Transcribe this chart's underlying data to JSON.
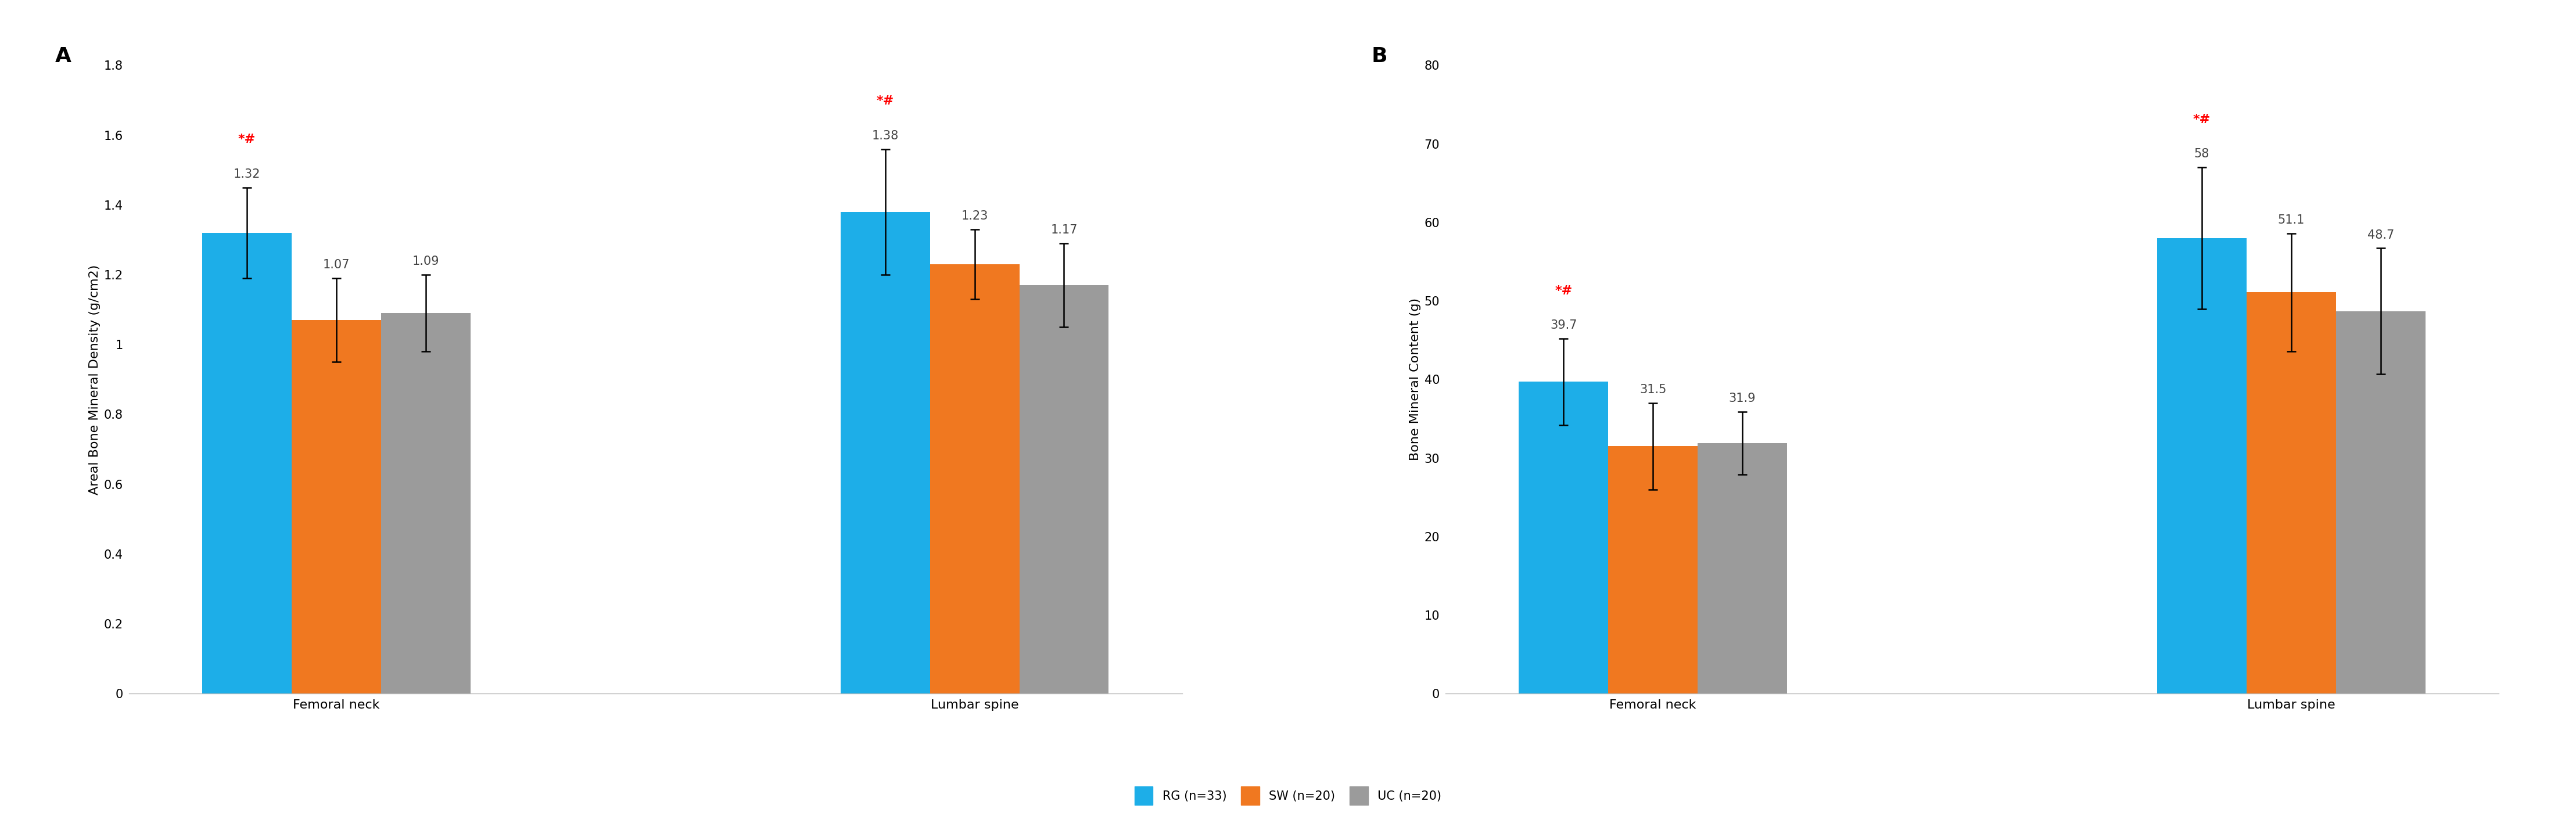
{
  "panel_A": {
    "title": "A",
    "ylabel": "Areal Bone Mineral Density (g/cm2)",
    "ylim": [
      0,
      1.8
    ],
    "yticks": [
      0,
      0.2,
      0.4,
      0.6,
      0.8,
      1.0,
      1.2,
      1.4,
      1.6,
      1.8
    ],
    "ytick_labels": [
      "0",
      "0.2",
      "0.4",
      "0.6",
      "0.8",
      "1",
      "1.2",
      "1.4",
      "1.6",
      "1.8"
    ],
    "groups": [
      "Femoral neck",
      "Lumbar spine"
    ],
    "values": {
      "RG": [
        1.32,
        1.38
      ],
      "SW": [
        1.07,
        1.23
      ],
      "UC": [
        1.09,
        1.17
      ]
    },
    "errors": {
      "RG": [
        0.13,
        0.18
      ],
      "SW": [
        0.12,
        0.1
      ],
      "UC": [
        0.11,
        0.12
      ]
    },
    "sig_RG": [
      true,
      true
    ],
    "bar_labels": {
      "RG": [
        "1.32",
        "1.38"
      ],
      "SW": [
        "1.07",
        "1.23"
      ],
      "UC": [
        "1.09",
        "1.17"
      ]
    }
  },
  "panel_B": {
    "title": "B",
    "ylabel": "Bone Mineral Content (g)",
    "ylim": [
      0,
      80
    ],
    "yticks": [
      0,
      10,
      20,
      30,
      40,
      50,
      60,
      70,
      80
    ],
    "ytick_labels": [
      "0",
      "10",
      "20",
      "30",
      "40",
      "50",
      "60",
      "70",
      "80"
    ],
    "groups": [
      "Femoral neck",
      "Lumbar spine"
    ],
    "values": {
      "RG": [
        39.7,
        58.0
      ],
      "SW": [
        31.5,
        51.1
      ],
      "UC": [
        31.9,
        48.7
      ]
    },
    "errors": {
      "RG": [
        5.5,
        9.0
      ],
      "SW": [
        5.5,
        7.5
      ],
      "UC": [
        4.0,
        8.0
      ]
    },
    "sig_RG": [
      true,
      true
    ],
    "bar_labels": {
      "RG": [
        "39.7",
        "58"
      ],
      "SW": [
        "31.5",
        "51.1"
      ],
      "UC": [
        "31.9",
        "48.7"
      ]
    }
  },
  "colors": {
    "RG": "#1DAEE8",
    "SW": "#F07820",
    "UC": "#9B9B9B"
  },
  "legend": {
    "RG": "RG (n=33)",
    "SW": "SW (n=20)",
    "UC": "UC (n=20)"
  },
  "sig_color": "#FF0000",
  "sig_symbol": "*#",
  "bar_width": 0.28,
  "label_fontsize": 16,
  "tick_fontsize": 15,
  "title_fontsize": 26,
  "value_fontsize": 15,
  "legend_fontsize": 15,
  "xlabel_fontsize": 16,
  "background_color": "#FFFFFF"
}
